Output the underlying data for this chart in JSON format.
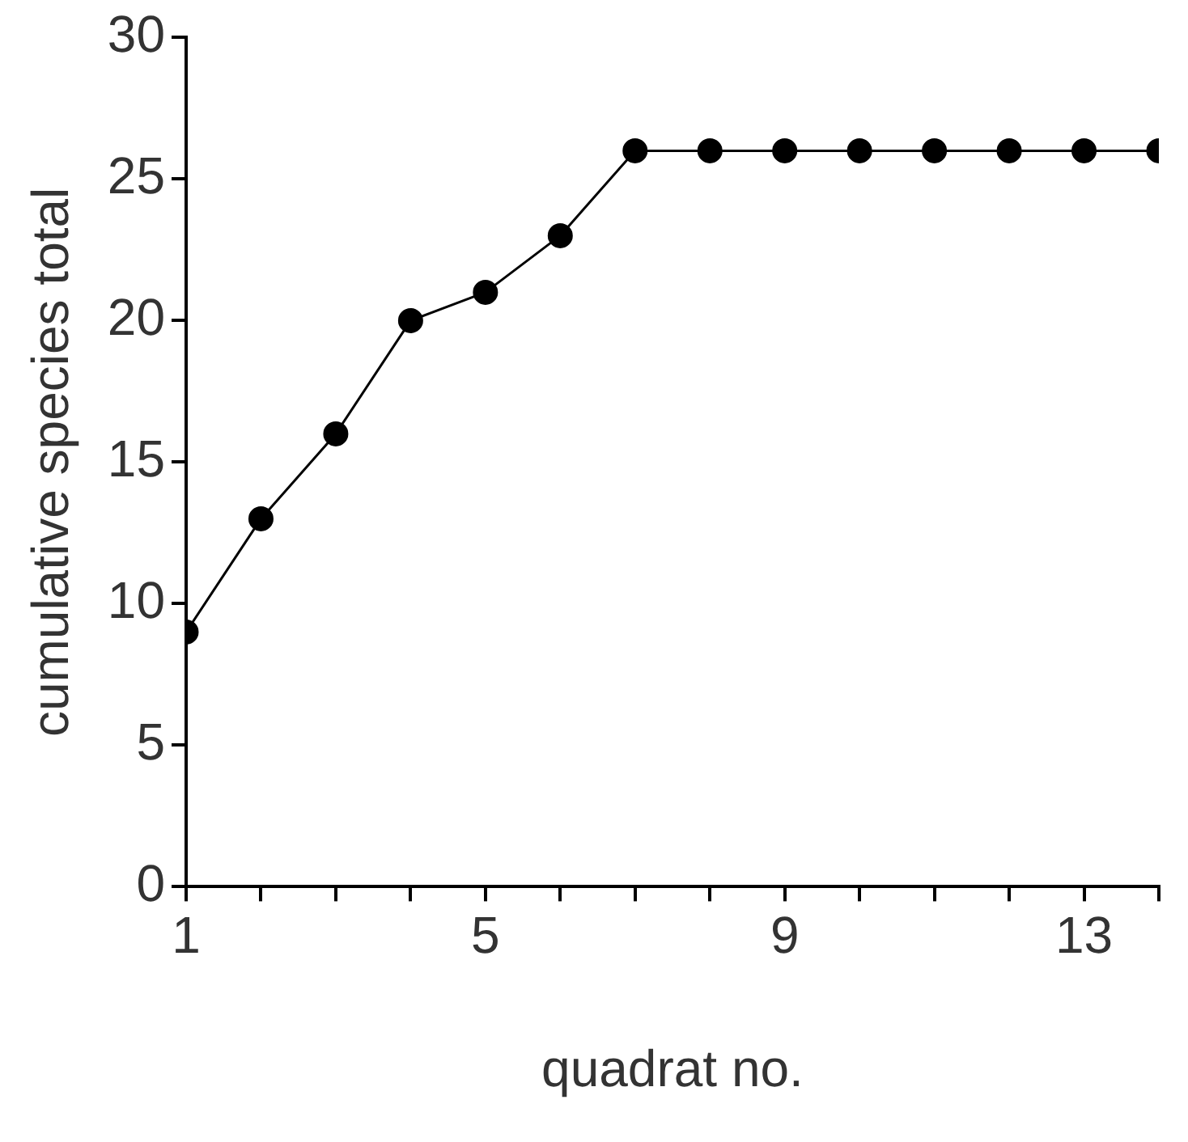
{
  "chart_data": {
    "type": "line",
    "xlabel": "quadrat no.",
    "ylabel": "cumulative species total",
    "x": [
      1,
      2,
      3,
      4,
      5,
      6,
      7,
      8,
      9,
      10,
      11,
      12,
      13,
      14
    ],
    "series": [
      {
        "color": "#000000",
        "values": [
          9,
          13,
          16,
          20,
          21,
          23,
          26,
          26,
          26,
          26,
          26,
          26,
          26,
          26
        ]
      }
    ],
    "xlim": [
      1,
      14
    ],
    "xticks": [
      1,
      {
        "value": 2,
        "label": null
      },
      {
        "value": 3,
        "label": null
      },
      {
        "value": 4,
        "label": null
      },
      5,
      {
        "value": 6,
        "label": null
      },
      {
        "value": 7,
        "label": null
      },
      {
        "value": 8,
        "label": null
      },
      9,
      {
        "value": 10,
        "label": null
      },
      {
        "value": 11,
        "label": null
      },
      {
        "value": 12,
        "label": null
      },
      13,
      {
        "value": 14,
        "label": null
      }
    ],
    "ylim": [
      0,
      30
    ],
    "yticks": [
      0,
      5,
      10,
      15,
      20,
      25,
      30
    ],
    "grid": false,
    "legend": false,
    "marker": "circle",
    "line_style": "solid"
  }
}
